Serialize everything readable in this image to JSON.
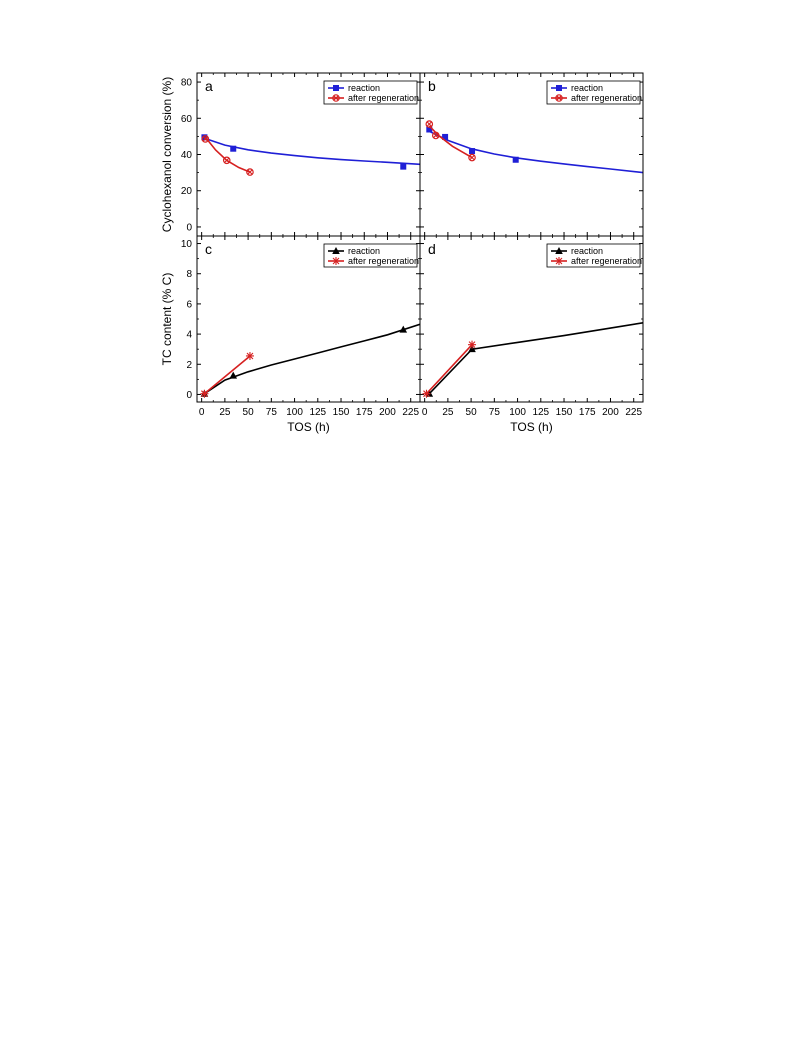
{
  "chart_data": [
    {
      "panel": "a",
      "type": "scatter",
      "xlim": [
        -5,
        235
      ],
      "ylim": [
        -5,
        85
      ],
      "xticks": [
        0,
        25,
        50,
        75,
        100,
        125,
        150,
        175,
        200,
        225
      ],
      "yticks": [
        0,
        20,
        40,
        60,
        80
      ],
      "xlabel": "",
      "ylabel": "Cyclohexanol conversion (%)",
      "legend_placement": "top-right",
      "series": [
        {
          "name": "reaction",
          "marker": "square",
          "color": "#1f1fd6",
          "points": [
            [
              3,
              49.5
            ],
            [
              34,
              43.2
            ],
            [
              217,
              33.3
            ]
          ],
          "fit": [
            [
              3,
              49
            ],
            [
              25,
              45.2
            ],
            [
              50,
              42.6
            ],
            [
              75,
              40.8
            ],
            [
              100,
              39.4
            ],
            [
              125,
              38.2
            ],
            [
              150,
              37.2
            ],
            [
              175,
              36.4
            ],
            [
              200,
              35.7
            ],
            [
              235,
              34.6
            ]
          ]
        },
        {
          "name": "after regeneration",
          "marker": "circle-x",
          "color": "#d62020",
          "points": [
            [
              4,
              48.6
            ],
            [
              27,
              36.8
            ],
            [
              52,
              30.3
            ]
          ],
          "fit": [
            [
              4,
              49.5
            ],
            [
              15,
              42.5
            ],
            [
              27,
              36.8
            ],
            [
              40,
              32.8
            ],
            [
              52,
              30.3
            ]
          ]
        }
      ]
    },
    {
      "panel": "b",
      "type": "scatter",
      "xlim": [
        -5,
        235
      ],
      "ylim": [
        -5,
        85
      ],
      "xticks": [
        0,
        25,
        50,
        75,
        100,
        125,
        150,
        175,
        200,
        225
      ],
      "yticks": [
        0,
        20,
        40,
        60,
        80
      ],
      "xlabel": "",
      "ylabel": "",
      "legend_placement": "top-right",
      "series": [
        {
          "name": "reaction",
          "marker": "square",
          "color": "#1f1fd6",
          "points": [
            [
              5,
              53.8
            ],
            [
              22,
              49.7
            ],
            [
              51,
              41.9
            ],
            [
              98,
              37.1
            ]
          ],
          "fit": [
            [
              5,
              52.8
            ],
            [
              25,
              47.8
            ],
            [
              50,
              43.2
            ],
            [
              75,
              40.3
            ],
            [
              100,
              38
            ],
            [
              125,
              36.3
            ],
            [
              150,
              34.8
            ],
            [
              175,
              33.3
            ],
            [
              200,
              32
            ],
            [
              235,
              30
            ]
          ]
        },
        {
          "name": "after regeneration",
          "marker": "circle-x",
          "color": "#d62020",
          "points": [
            [
              5,
              56.8
            ],
            [
              12,
              50.5
            ],
            [
              51,
              38.3
            ]
          ],
          "fit": [
            [
              5,
              55.8
            ],
            [
              15,
              50.5
            ],
            [
              30,
              44.5
            ],
            [
              51,
              38.3
            ]
          ]
        }
      ]
    },
    {
      "panel": "c",
      "type": "line",
      "xlim": [
        -5,
        235
      ],
      "ylim": [
        -0.5,
        10.5
      ],
      "xticks": [
        0,
        25,
        50,
        75,
        100,
        125,
        150,
        175,
        200,
        225
      ],
      "yticks": [
        0,
        2,
        4,
        6,
        8,
        10
      ],
      "xlabel": "TOS (h)",
      "ylabel": "TC content (% C)",
      "legend_placement": "top-right",
      "series": [
        {
          "name": "reaction",
          "marker": "triangle",
          "color": "#000000",
          "points": [
            [
              3,
              0.05
            ],
            [
              34,
              1.25
            ],
            [
              217,
              4.3
            ]
          ],
          "fit": [
            [
              3,
              0.05
            ],
            [
              25,
              0.95
            ],
            [
              50,
              1.5
            ],
            [
              75,
              1.95
            ],
            [
              100,
              2.35
            ],
            [
              125,
              2.75
            ],
            [
              150,
              3.15
            ],
            [
              175,
              3.55
            ],
            [
              200,
              3.95
            ],
            [
              235,
              4.65
            ]
          ]
        },
        {
          "name": "after regeneration",
          "marker": "star",
          "color": "#d62020",
          "points": [
            [
              3,
              0.05
            ],
            [
              52,
              2.55
            ]
          ],
          "fit": [
            [
              3,
              0.05
            ],
            [
              52,
              2.55
            ]
          ]
        }
      ]
    },
    {
      "panel": "d",
      "type": "line",
      "xlim": [
        -5,
        235
      ],
      "ylim": [
        -0.5,
        10.5
      ],
      "xticks": [
        0,
        25,
        50,
        75,
        100,
        125,
        150,
        175,
        200,
        225
      ],
      "yticks": [
        0,
        2,
        4,
        6,
        8,
        10
      ],
      "xlabel": "TOS (h)",
      "ylabel": "",
      "legend_placement": "top-right",
      "series": [
        {
          "name": "reaction",
          "marker": "triangle",
          "color": "#000000",
          "points": [
            [
              5,
              0.05
            ],
            [
              51,
              3.0
            ]
          ],
          "fit": [
            [
              5,
              0.05
            ],
            [
              51,
              3.0
            ],
            [
              100,
              3.45
            ],
            [
              150,
              3.9
            ],
            [
              200,
              4.4
            ],
            [
              235,
              4.75
            ]
          ]
        },
        {
          "name": "after regeneration",
          "marker": "star",
          "color": "#d62020",
          "points": [
            [
              2,
              0.05
            ],
            [
              51,
              3.3
            ]
          ],
          "fit": [
            [
              2,
              0.05
            ],
            [
              51,
              3.3
            ]
          ]
        }
      ]
    }
  ]
}
